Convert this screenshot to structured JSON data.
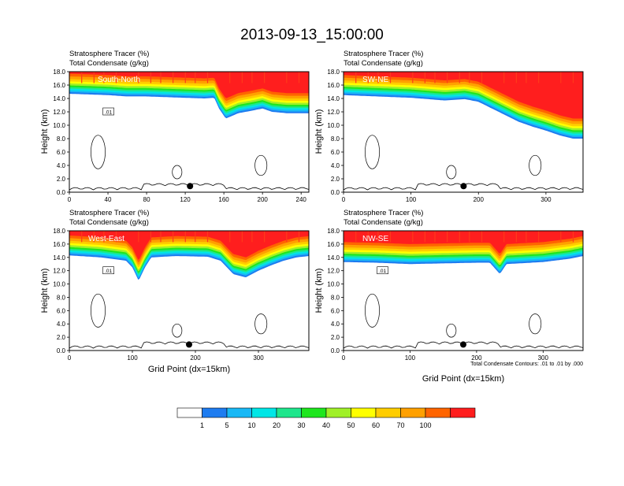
{
  "title": "2013-09-13_15:00:00",
  "panel_labels": {
    "tracer": "Stratosphere Tracer   (%)",
    "condensate": "Total Condensate   (g/kg)"
  },
  "axis_labels": {
    "y": "Height (km)",
    "x": "Grid Point (dx=15km)"
  },
  "contour_note": "Total Condensate Contours: .01 to .01 by .000",
  "colors": {
    "bins": [
      "#ffffff",
      "#1e7cf0",
      "#19b8f5",
      "#00e6e6",
      "#1ee68c",
      "#1ee61e",
      "#a0f028",
      "#ffff00",
      "#ffcd00",
      "#ffa000",
      "#ff6400",
      "#ff1e1e"
    ],
    "contour": "#000000",
    "axis": "#000000"
  },
  "chart_data": [
    {
      "type": "heatmap",
      "name": "South-North",
      "label": "South-North",
      "xlim": [
        0,
        248
      ],
      "ylim": [
        0,
        18
      ],
      "x_ticks": [
        0,
        40,
        80,
        120,
        160,
        200,
        240
      ],
      "y_ticks": [
        "0.0",
        "2.0",
        "4.0",
        "6.0",
        "8.0",
        "10.0",
        "12.0",
        "14.0",
        "16.0",
        "18.0"
      ],
      "tropopause_km": [
        [
          0,
          14.7
        ],
        [
          20,
          14.6
        ],
        [
          40,
          14.5
        ],
        [
          60,
          14.3
        ],
        [
          80,
          14.3
        ],
        [
          100,
          14.2
        ],
        [
          120,
          14.1
        ],
        [
          140,
          14.0
        ],
        [
          150,
          14.1
        ],
        [
          155,
          12.5
        ],
        [
          162,
          11.0
        ],
        [
          175,
          11.8
        ],
        [
          190,
          12.2
        ],
        [
          200,
          12.5
        ],
        [
          210,
          12.0
        ],
        [
          225,
          11.8
        ],
        [
          248,
          11.8
        ]
      ],
      "contour_label": ".01",
      "marker_x": 125
    },
    {
      "type": "heatmap",
      "name": "SW-NE",
      "label": "SW-NE",
      "xlim": [
        0,
        355
      ],
      "ylim": [
        0,
        18
      ],
      "x_ticks": [
        0,
        100,
        200,
        300
      ],
      "y_ticks": [
        "0.0",
        "2.0",
        "4.0",
        "6.0",
        "8.0",
        "10.0",
        "12.0",
        "14.0",
        "16.0",
        "18.0"
      ],
      "tropopause_km": [
        [
          0,
          14.5
        ],
        [
          50,
          14.3
        ],
        [
          100,
          14.1
        ],
        [
          150,
          13.7
        ],
        [
          180,
          13.9
        ],
        [
          200,
          13.5
        ],
        [
          220,
          12.5
        ],
        [
          240,
          11.5
        ],
        [
          260,
          10.5
        ],
        [
          280,
          9.8
        ],
        [
          300,
          9.2
        ],
        [
          320,
          8.5
        ],
        [
          340,
          8.0
        ],
        [
          355,
          8.0
        ]
      ],
      "contour_label": "",
      "marker_x": 178
    },
    {
      "type": "heatmap",
      "name": "West-East",
      "label": "West-East",
      "xlim": [
        0,
        380
      ],
      "ylim": [
        0,
        18
      ],
      "x_ticks": [
        0,
        100,
        200,
        300
      ],
      "y_ticks": [
        "0.0",
        "2.0",
        "4.0",
        "6.0",
        "8.0",
        "10.0",
        "12.0",
        "14.0",
        "16.0",
        "18.0"
      ],
      "tropopause_km": [
        [
          0,
          14.3
        ],
        [
          50,
          14.0
        ],
        [
          90,
          13.5
        ],
        [
          100,
          12.5
        ],
        [
          110,
          10.5
        ],
        [
          120,
          12.5
        ],
        [
          130,
          14.0
        ],
        [
          170,
          14.2
        ],
        [
          220,
          14.1
        ],
        [
          240,
          13.5
        ],
        [
          260,
          11.5
        ],
        [
          280,
          11.0
        ],
        [
          300,
          12.0
        ],
        [
          320,
          12.8
        ],
        [
          340,
          13.5
        ],
        [
          360,
          14.0
        ],
        [
          380,
          14.2
        ]
      ],
      "contour_label": ".01",
      "marker_x": 190
    },
    {
      "type": "heatmap",
      "name": "NW-SE",
      "label": "NW-SE",
      "xlim": [
        0,
        360
      ],
      "ylim": [
        0,
        18
      ],
      "x_ticks": [
        0,
        100,
        200,
        300
      ],
      "y_ticks": [
        "0.0",
        "2.0",
        "4.0",
        "6.0",
        "8.0",
        "10.0",
        "12.0",
        "14.0",
        "16.0",
        "18.0"
      ],
      "tropopause_km": [
        [
          0,
          13.3
        ],
        [
          50,
          13.2
        ],
        [
          100,
          13.0
        ],
        [
          150,
          13.1
        ],
        [
          200,
          13.2
        ],
        [
          220,
          13.2
        ],
        [
          235,
          11.5
        ],
        [
          245,
          13.0
        ],
        [
          300,
          13.3
        ],
        [
          340,
          13.8
        ],
        [
          360,
          14.2
        ]
      ],
      "contour_label": ".01",
      "marker_x": 180
    }
  ],
  "colorbar": {
    "labels": [
      "1",
      "5",
      "10",
      "20",
      "30",
      "40",
      "50",
      "60",
      "70",
      "100"
    ]
  }
}
